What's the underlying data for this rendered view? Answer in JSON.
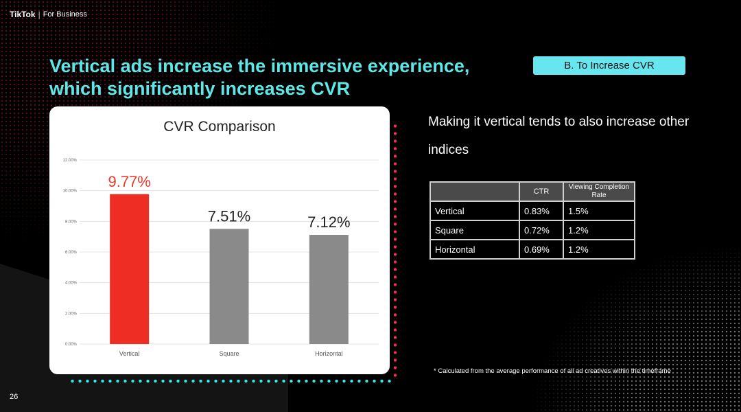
{
  "brand": {
    "name": "TikTok",
    "separator": "|",
    "suffix": "For Business"
  },
  "headline": "Vertical ads increase the immersive experience, which significantly increases CVR",
  "tag": "B. To Increase CVR",
  "subhead": "Making it vertical tends to also increase other indices",
  "chart_data": {
    "type": "bar",
    "title": "CVR Comparison",
    "categories": [
      "Vertical",
      "Square",
      "Horizontal"
    ],
    "values": [
      9.77,
      7.51,
      7.12
    ],
    "data_labels": [
      "9.77%",
      "7.51%",
      "7.12%"
    ],
    "bar_colors": [
      "#ee2e24",
      "#8a8a8a",
      "#8a8a8a"
    ],
    "label_colors": [
      "#e8392c",
      "#222222",
      "#222222"
    ],
    "ylim": [
      0,
      12
    ],
    "yticks": [
      "0.00%",
      "2.00%",
      "4.00%",
      "6.00%",
      "8.00%",
      "10.00%",
      "12.00%"
    ],
    "grid": true,
    "xlabel": "",
    "ylabel": ""
  },
  "table": {
    "headers": [
      "",
      "CTR",
      "Viewing Completion Rate"
    ],
    "rows": [
      [
        "Vertical",
        "0.83%",
        "1.5%"
      ],
      [
        "Square",
        "0.72%",
        "1.2%"
      ],
      [
        "Horizontal",
        "0.69%",
        "1.2%"
      ]
    ]
  },
  "footnote": "* Calculated from the average performance of all ad creatives within the timeframe",
  "page_number": "26",
  "colors": {
    "accent_cyan": "#5fe7e7",
    "tiktok_red": "#fe2c55",
    "tiktok_cyan": "#25f4ee"
  }
}
